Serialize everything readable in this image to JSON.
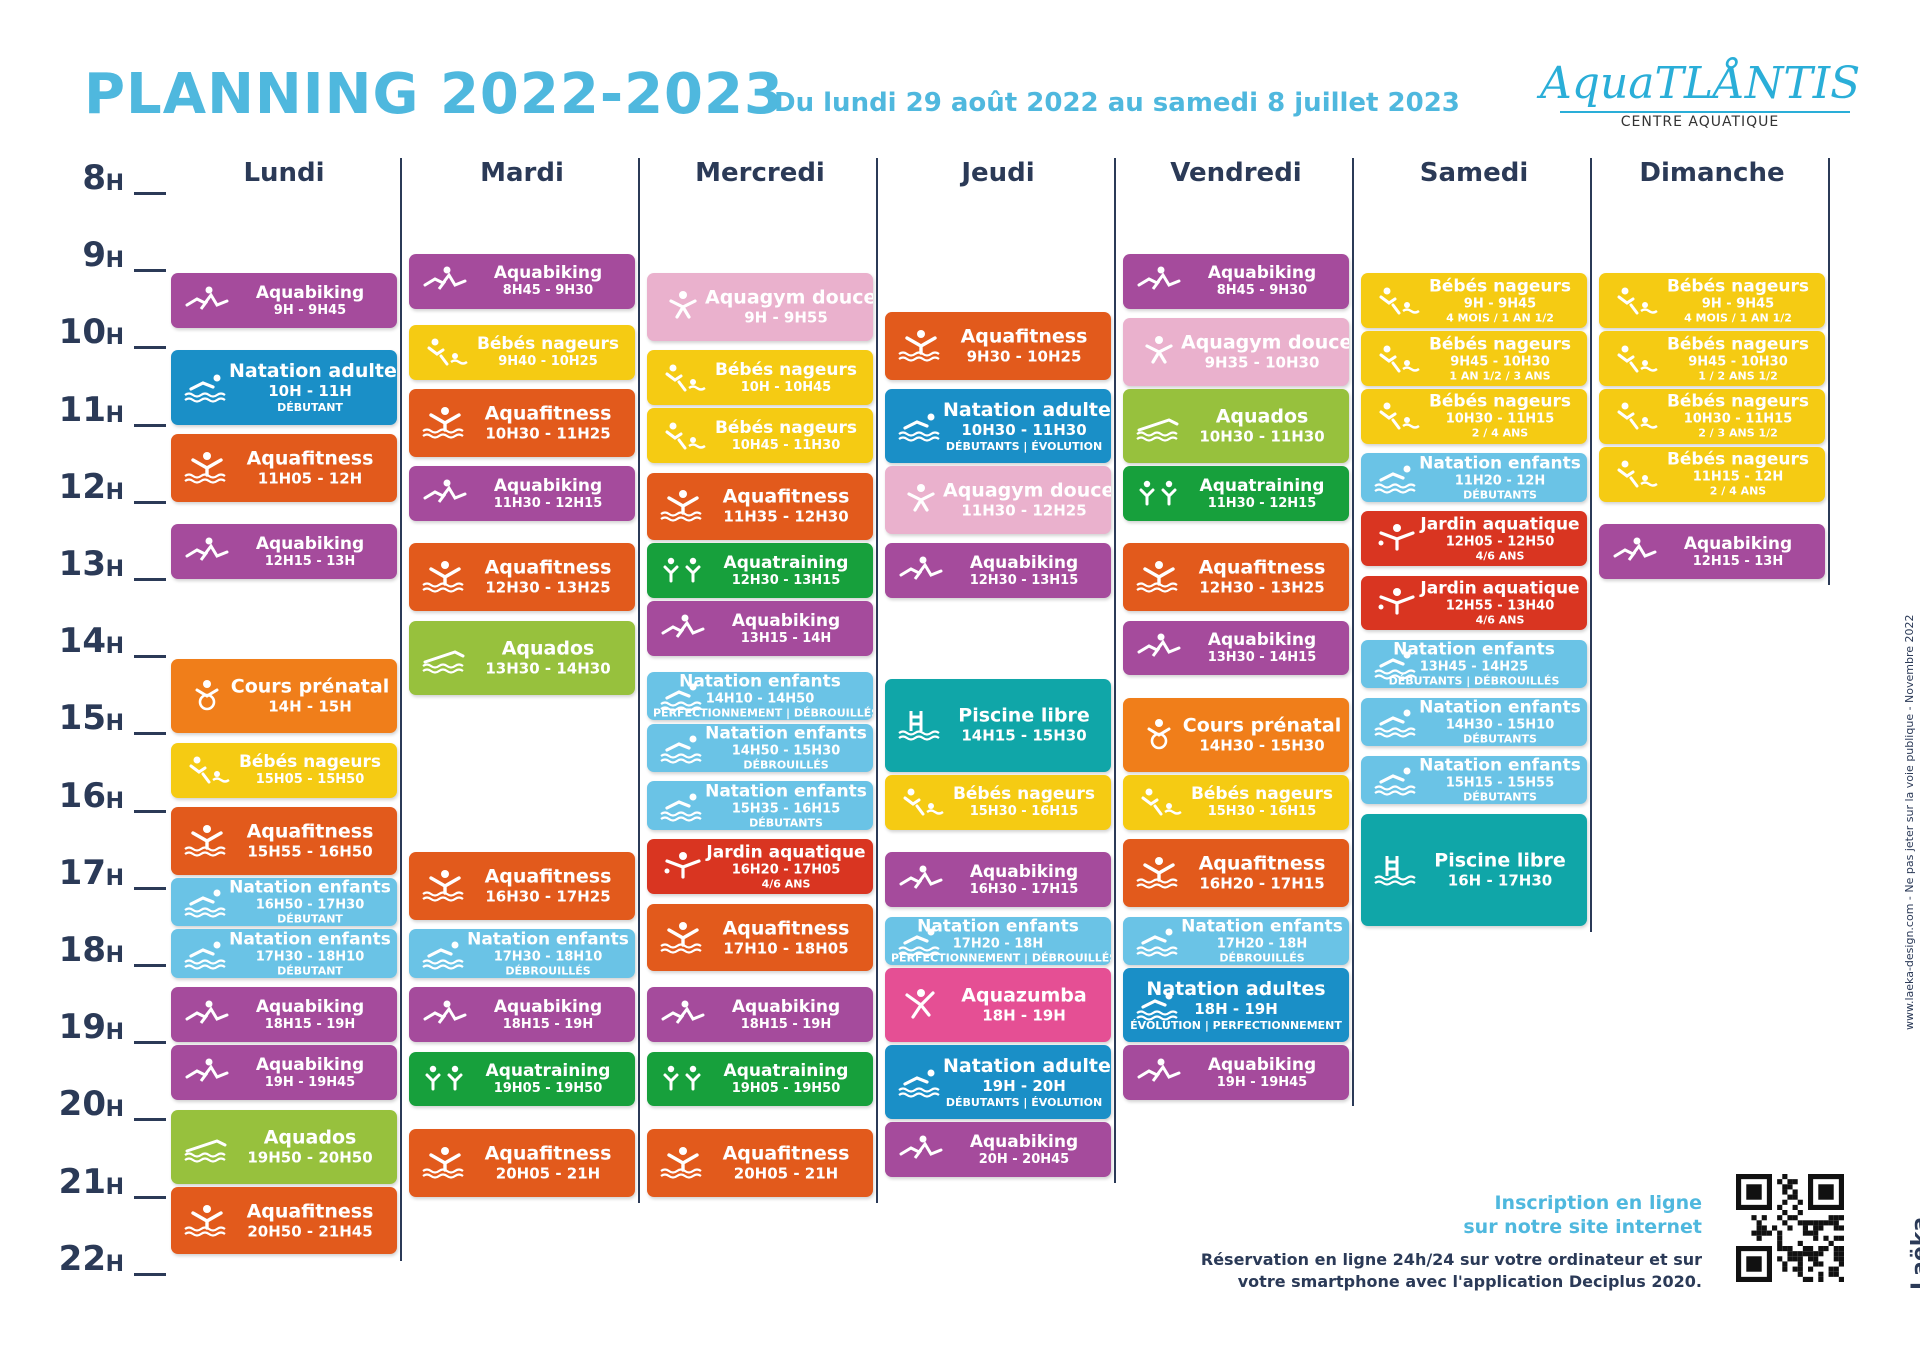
{
  "header": {
    "title": "PLANNING 2022-2023",
    "subtitle": "Du lundi 29 août 2022 au samedi 8 juillet 2023"
  },
  "logo": {
    "name": "AquaTLÅNTIS",
    "subtitle": "CENTRE AQUATIQUE"
  },
  "colors": {
    "aquabiking": "#a54b9c",
    "natation_adultes": "#1a8fc7",
    "aquafitness": "#e25a1c",
    "cours_prenatal": "#f07e1a",
    "bebes_nageurs": "#f5cb13",
    "natation_enfants": "#6ac3e6",
    "aquados": "#97c13d",
    "aquagym_douce": "#eab1cd",
    "aquatraining": "#17a03c",
    "jardin_aquatique": "#d93521",
    "piscine_libre": "#10a6a8",
    "aquazumba": "#e54f94"
  },
  "hours": [
    "8",
    "9",
    "10",
    "11",
    "12",
    "13",
    "14",
    "15",
    "16",
    "17",
    "18",
    "19",
    "20",
    "21",
    "22"
  ],
  "hour_suffix": "H",
  "days": [
    {
      "name": "Lundi",
      "activities": [
        {
          "name": "Aquabiking",
          "time": "9H - 9H45",
          "type": "aquabiking",
          "start": 9.0,
          "end": 9.75,
          "icon": "aquabiking-icon"
        },
        {
          "name": "Natation adultes",
          "time": "10H - 11H",
          "note": "DÉBUTANT",
          "type": "natation_adultes",
          "start": 10.0,
          "end": 11.0,
          "icon": "swimmer-icon"
        },
        {
          "name": "Aquafitness",
          "time": "11H05 - 12H",
          "type": "aquafitness",
          "start": 11.083,
          "end": 12.0,
          "icon": "aquafitness-icon"
        },
        {
          "name": "Aquabiking",
          "time": "12H15 - 13H",
          "type": "aquabiking",
          "start": 12.25,
          "end": 13.0,
          "icon": "aquabiking-icon"
        },
        {
          "name": "Cours prénatal",
          "time": "14H - 15H",
          "type": "cours_prenatal",
          "start": 14.0,
          "end": 15.0,
          "icon": "prenatal-icon"
        },
        {
          "name": "Bébés nageurs",
          "time": "15H05 - 15H50",
          "type": "bebes_nageurs",
          "start": 15.083,
          "end": 15.833,
          "icon": "baby-swimmer-icon"
        },
        {
          "name": "Aquafitness",
          "time": "15H55 - 16H50",
          "type": "aquafitness",
          "start": 15.917,
          "end": 16.833,
          "icon": "aquafitness-icon"
        },
        {
          "name": "Natation enfants",
          "time": "16H50 - 17H30",
          "note": "DÉBUTANT",
          "type": "natation_enfants",
          "start": 16.833,
          "end": 17.5,
          "icon": "swimmer-icon"
        },
        {
          "name": "Natation enfants",
          "time": "17H30 - 18H10",
          "note": "DÉBUTANT",
          "type": "natation_enfants",
          "start": 17.5,
          "end": 18.167,
          "icon": "swimmer-icon"
        },
        {
          "name": "Aquabiking",
          "time": "18H15 - 19H",
          "type": "aquabiking",
          "start": 18.25,
          "end": 19.0,
          "icon": "aquabiking-icon"
        },
        {
          "name": "Aquabiking",
          "time": "19H - 19H45",
          "type": "aquabiking",
          "start": 19.0,
          "end": 19.75,
          "icon": "aquabiking-icon"
        },
        {
          "name": "Aquados",
          "time": "19H50 - 20H50",
          "type": "aquados",
          "start": 19.833,
          "end": 20.833,
          "icon": "wave-swimmer-icon"
        },
        {
          "name": "Aquafitness",
          "time": "20H50 - 21H45",
          "type": "aquafitness",
          "start": 20.833,
          "end": 21.75,
          "icon": "aquafitness-icon"
        }
      ]
    },
    {
      "name": "Mardi",
      "activities": [
        {
          "name": "Aquabiking",
          "time": "8H45 - 9H30",
          "type": "aquabiking",
          "start": 8.75,
          "end": 9.5,
          "icon": "aquabiking-icon"
        },
        {
          "name": "Bébés nageurs",
          "time": "9H40 - 10H25",
          "type": "bebes_nageurs",
          "start": 9.667,
          "end": 10.417,
          "icon": "baby-swimmer-icon"
        },
        {
          "name": "Aquafitness",
          "time": "10H30 - 11H25",
          "type": "aquafitness",
          "start": 10.5,
          "end": 11.417,
          "icon": "aquafitness-icon"
        },
        {
          "name": "Aquabiking",
          "time": "11H30 - 12H15",
          "type": "aquabiking",
          "start": 11.5,
          "end": 12.25,
          "icon": "aquabiking-icon"
        },
        {
          "name": "Aquafitness",
          "time": "12H30 - 13H25",
          "type": "aquafitness",
          "start": 12.5,
          "end": 13.417,
          "icon": "aquafitness-icon"
        },
        {
          "name": "Aquados",
          "time": "13H30 - 14H30",
          "type": "aquados",
          "start": 13.5,
          "end": 14.5,
          "icon": "wave-swimmer-icon"
        },
        {
          "name": "Aquafitness",
          "time": "16H30 - 17H25",
          "type": "aquafitness",
          "start": 16.5,
          "end": 17.417,
          "icon": "aquafitness-icon"
        },
        {
          "name": "Natation enfants",
          "time": "17H30 - 18H10",
          "note": "DÉBROUILLÉS",
          "type": "natation_enfants",
          "start": 17.5,
          "end": 18.167,
          "icon": "swimmer-icon"
        },
        {
          "name": "Aquabiking",
          "time": "18H15 - 19H",
          "type": "aquabiking",
          "start": 18.25,
          "end": 19.0,
          "icon": "aquabiking-icon"
        },
        {
          "name": "Aquatraining",
          "time": "19H05 - 19H50",
          "type": "aquatraining",
          "start": 19.083,
          "end": 19.833,
          "icon": "aquatraining-icon"
        },
        {
          "name": "Aquafitness",
          "time": "20H05 - 21H",
          "type": "aquafitness",
          "start": 20.083,
          "end": 21.0,
          "icon": "aquafitness-icon"
        }
      ]
    },
    {
      "name": "Mercredi",
      "activities": [
        {
          "name": "Aquagym douce",
          "time": "9H - 9H55",
          "type": "aquagym_douce",
          "start": 9.0,
          "end": 9.917,
          "icon": "aquagym-icon"
        },
        {
          "name": "Bébés nageurs",
          "time": "10H - 10H45",
          "type": "bebes_nageurs",
          "start": 10.0,
          "end": 10.75,
          "icon": "baby-swimmer-icon"
        },
        {
          "name": "Bébés nageurs",
          "time": "10H45 - 11H30",
          "type": "bebes_nageurs",
          "start": 10.75,
          "end": 11.5,
          "icon": "baby-swimmer-icon"
        },
        {
          "name": "Aquafitness",
          "time": "11H35 - 12H30",
          "type": "aquafitness",
          "start": 11.583,
          "end": 12.5,
          "icon": "aquafitness-icon"
        },
        {
          "name": "Aquatraining",
          "time": "12H30 - 13H15",
          "type": "aquatraining",
          "start": 12.5,
          "end": 13.25,
          "icon": "aquatraining-icon"
        },
        {
          "name": "Aquabiking",
          "time": "13H15 - 14H",
          "type": "aquabiking",
          "start": 13.25,
          "end": 14.0,
          "icon": "aquabiking-icon"
        },
        {
          "name": "Natation enfants",
          "time": "14H10 - 14H50",
          "note": "PERFECTIONNEMENT | DÉBROUILLÉS",
          "type": "natation_enfants",
          "start": 14.167,
          "end": 14.833,
          "icon": "swimmer-icon"
        },
        {
          "name": "Natation enfants",
          "time": "14H50 - 15H30",
          "note": "DÉBROUILLÉS",
          "type": "natation_enfants",
          "start": 14.833,
          "end": 15.5,
          "icon": "swimmer-icon"
        },
        {
          "name": "Natation enfants",
          "time": "15H35 - 16H15",
          "note": "DÉBUTANTS",
          "type": "natation_enfants",
          "start": 15.583,
          "end": 16.25,
          "icon": "swimmer-icon"
        },
        {
          "name": "Jardin aquatique",
          "time": "16H20 - 17H05",
          "note": "4/6 ANS",
          "type": "jardin_aquatique",
          "start": 16.333,
          "end": 17.083,
          "icon": "child-swimmer-icon"
        },
        {
          "name": "Aquafitness",
          "time": "17H10 - 18H05",
          "type": "aquafitness",
          "start": 17.167,
          "end": 18.083,
          "icon": "aquafitness-icon"
        },
        {
          "name": "Aquabiking",
          "time": "18H15 - 19H",
          "type": "aquabiking",
          "start": 18.25,
          "end": 19.0,
          "icon": "aquabiking-icon"
        },
        {
          "name": "Aquatraining",
          "time": "19H05 - 19H50",
          "type": "aquatraining",
          "start": 19.083,
          "end": 19.833,
          "icon": "aquatraining-icon"
        },
        {
          "name": "Aquafitness",
          "time": "20H05 - 21H",
          "type": "aquafitness",
          "start": 20.083,
          "end": 21.0,
          "icon": "aquafitness-icon"
        }
      ]
    },
    {
      "name": "Jeudi",
      "activities": [
        {
          "name": "Aquafitness",
          "time": "9H30 - 10H25",
          "type": "aquafitness",
          "start": 9.5,
          "end": 10.417,
          "icon": "aquafitness-icon"
        },
        {
          "name": "Natation adultes",
          "time": "10H30 - 11H30",
          "note": "DÉBUTANTS | ÉVOLUTION",
          "type": "natation_adultes",
          "start": 10.5,
          "end": 11.5,
          "icon": "swimmer-icon"
        },
        {
          "name": "Aquagym douce",
          "time": "11H30 - 12H25",
          "type": "aquagym_douce",
          "start": 11.5,
          "end": 12.417,
          "icon": "aquagym-icon"
        },
        {
          "name": "Aquabiking",
          "time": "12H30 - 13H15",
          "type": "aquabiking",
          "start": 12.5,
          "end": 13.25,
          "icon": "aquabiking-icon"
        },
        {
          "name": "Piscine libre",
          "time": "14H15 - 15H30",
          "type": "piscine_libre",
          "start": 14.25,
          "end": 15.5,
          "icon": "pool-ladder-icon"
        },
        {
          "name": "Bébés nageurs",
          "time": "15H30 - 16H15",
          "type": "bebes_nageurs",
          "start": 15.5,
          "end": 16.25,
          "icon": "baby-swimmer-icon"
        },
        {
          "name": "Aquabiking",
          "time": "16H30 - 17H15",
          "type": "aquabiking",
          "start": 16.5,
          "end": 17.25,
          "icon": "aquabiking-icon"
        },
        {
          "name": "Natation enfants",
          "time": "17H20 - 18H",
          "note": "PERFECTIONNEMENT | DÉBROUILLÉS",
          "type": "natation_enfants",
          "start": 17.333,
          "end": 18.0,
          "icon": "swimmer-icon"
        },
        {
          "name": "Aquazumba",
          "time": "18H - 19H",
          "type": "aquazumba",
          "start": 18.0,
          "end": 19.0,
          "icon": "aquazumba-icon"
        },
        {
          "name": "Natation adultes",
          "time": "19H - 20H",
          "note": "DÉBUTANTS | ÉVOLUTION",
          "type": "natation_adultes",
          "start": 19.0,
          "end": 20.0,
          "icon": "swimmer-icon"
        },
        {
          "name": "Aquabiking",
          "time": "20H - 20H45",
          "type": "aquabiking",
          "start": 20.0,
          "end": 20.75,
          "icon": "aquabiking-icon"
        }
      ]
    },
    {
      "name": "Vendredi",
      "activities": [
        {
          "name": "Aquabiking",
          "time": "8H45 - 9H30",
          "type": "aquabiking",
          "start": 8.75,
          "end": 9.5,
          "icon": "aquabiking-icon"
        },
        {
          "name": "Aquagym douce",
          "time": "9H35 - 10H30",
          "type": "aquagym_douce",
          "start": 9.583,
          "end": 10.5,
          "icon": "aquagym-icon"
        },
        {
          "name": "Aquados",
          "time": "10H30 - 11H30",
          "type": "aquados",
          "start": 10.5,
          "end": 11.5,
          "icon": "wave-swimmer-icon"
        },
        {
          "name": "Aquatraining",
          "time": "11H30 - 12H15",
          "type": "aquatraining",
          "start": 11.5,
          "end": 12.25,
          "icon": "aquatraining-icon"
        },
        {
          "name": "Aquafitness",
          "time": "12H30 - 13H25",
          "type": "aquafitness",
          "start": 12.5,
          "end": 13.417,
          "icon": "aquafitness-icon"
        },
        {
          "name": "Aquabiking",
          "time": "13H30 - 14H15",
          "type": "aquabiking",
          "start": 13.5,
          "end": 14.25,
          "icon": "aquabiking-icon"
        },
        {
          "name": "Cours prénatal",
          "time": "14H30 - 15H30",
          "type": "cours_prenatal",
          "start": 14.5,
          "end": 15.5,
          "icon": "prenatal-icon"
        },
        {
          "name": "Bébés nageurs",
          "time": "15H30 - 16H15",
          "type": "bebes_nageurs",
          "start": 15.5,
          "end": 16.25,
          "icon": "baby-swimmer-icon"
        },
        {
          "name": "Aquafitness",
          "time": "16H20 - 17H15",
          "type": "aquafitness",
          "start": 16.333,
          "end": 17.25,
          "icon": "aquafitness-icon"
        },
        {
          "name": "Natation enfants",
          "time": "17H20 - 18H",
          "note": "DÉBROUILLÉS",
          "type": "natation_enfants",
          "start": 17.333,
          "end": 18.0,
          "icon": "swimmer-icon"
        },
        {
          "name": "Natation adultes",
          "time": "18H - 19H",
          "note": "ÉVOLUTION | PERFECTIONNEMENT",
          "type": "natation_adultes",
          "start": 18.0,
          "end": 19.0,
          "icon": "swimmer-icon"
        },
        {
          "name": "Aquabiking",
          "time": "19H - 19H45",
          "type": "aquabiking",
          "start": 19.0,
          "end": 19.75,
          "icon": "aquabiking-icon"
        }
      ]
    },
    {
      "name": "Samedi",
      "activities": [
        {
          "name": "Bébés nageurs",
          "time": "9H - 9H45",
          "note": "4 MOIS / 1 AN 1/2",
          "type": "bebes_nageurs",
          "start": 9.0,
          "end": 9.75,
          "icon": "baby-swimmer-icon"
        },
        {
          "name": "Bébés nageurs",
          "time": "9H45 - 10H30",
          "note": "1 AN 1/2 / 3 ANS",
          "type": "bebes_nageurs",
          "start": 9.75,
          "end": 10.5,
          "icon": "baby-swimmer-icon"
        },
        {
          "name": "Bébés nageurs",
          "time": "10H30 - 11H15",
          "note": "2 / 4 ANS",
          "type": "bebes_nageurs",
          "start": 10.5,
          "end": 11.25,
          "icon": "baby-swimmer-icon"
        },
        {
          "name": "Natation enfants",
          "time": "11H20 - 12H",
          "note": "DÉBUTANTS",
          "type": "natation_enfants",
          "start": 11.333,
          "end": 12.0,
          "icon": "swimmer-icon"
        },
        {
          "name": "Jardin aquatique",
          "time": "12H05 - 12H50",
          "note": "4/6 ANS",
          "type": "jardin_aquatique",
          "start": 12.083,
          "end": 12.833,
          "icon": "child-swimmer-icon"
        },
        {
          "name": "Jardin aquatique",
          "time": "12H55 - 13H40",
          "note": "4/6 ANS",
          "type": "jardin_aquatique",
          "start": 12.917,
          "end": 13.667,
          "icon": "child-swimmer-icon"
        },
        {
          "name": "Natation enfants",
          "time": "13H45 - 14H25",
          "note": "DÉBUTANTS | DÉBROUILLÉS",
          "type": "natation_enfants",
          "start": 13.75,
          "end": 14.417,
          "icon": "swimmer-icon"
        },
        {
          "name": "Natation enfants",
          "time": "14H30 - 15H10",
          "note": "DÉBUTANTS",
          "type": "natation_enfants",
          "start": 14.5,
          "end": 15.167,
          "icon": "swimmer-icon"
        },
        {
          "name": "Natation enfants",
          "time": "15H15 - 15H55",
          "note": "DÉBUTANTS",
          "type": "natation_enfants",
          "start": 15.25,
          "end": 15.917,
          "icon": "swimmer-icon"
        },
        {
          "name": "Piscine libre",
          "time": "16H - 17H30",
          "type": "piscine_libre",
          "start": 16.0,
          "end": 17.5,
          "icon": "pool-ladder-icon"
        }
      ]
    },
    {
      "name": "Dimanche",
      "activities": [
        {
          "name": "Bébés nageurs",
          "time": "9H - 9H45",
          "note": "4 MOIS / 1 AN 1/2",
          "type": "bebes_nageurs",
          "start": 9.0,
          "end": 9.75,
          "icon": "baby-swimmer-icon"
        },
        {
          "name": "Bébés nageurs",
          "time": "9H45 - 10H30",
          "note": "1 / 2 ANS 1/2",
          "type": "bebes_nageurs",
          "start": 9.75,
          "end": 10.5,
          "icon": "baby-swimmer-icon"
        },
        {
          "name": "Bébés nageurs",
          "time": "10H30 - 11H15",
          "note": "2 / 3 ANS 1/2",
          "type": "bebes_nageurs",
          "start": 10.5,
          "end": 11.25,
          "icon": "baby-swimmer-icon"
        },
        {
          "name": "Bébés nageurs",
          "time": "11H15 - 12H",
          "note": "2 / 4 ANS",
          "type": "bebes_nageurs",
          "start": 11.25,
          "end": 12.0,
          "icon": "baby-swimmer-icon"
        },
        {
          "name": "Aquabiking",
          "time": "12H15 - 13H",
          "type": "aquabiking",
          "start": 12.25,
          "end": 13.0,
          "icon": "aquabiking-icon"
        }
      ]
    }
  ],
  "footer": {
    "inscription_line1": "Inscription en ligne",
    "inscription_line2": "sur notre site internet",
    "reservation_line1": "Réservation en ligne 24h/24 sur votre ordinateur et sur",
    "reservation_line2": "votre smartphone avec l'application Deciplus 2020.",
    "side_text": "www.laeka-design.com - Ne pas jeter sur la voie publique - Novembre 2022",
    "designer": "Laëka"
  }
}
